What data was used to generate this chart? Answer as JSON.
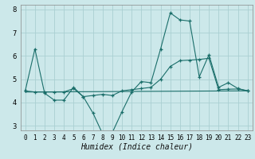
{
  "title": "",
  "xlabel": "Humidex (Indice chaleur)",
  "xlim": [
    -0.5,
    23.5
  ],
  "ylim": [
    2.8,
    8.2
  ],
  "yticks": [
    3,
    4,
    5,
    6,
    7,
    8
  ],
  "xticks": [
    0,
    1,
    2,
    3,
    4,
    5,
    6,
    7,
    8,
    9,
    10,
    11,
    12,
    13,
    14,
    15,
    16,
    17,
    18,
    19,
    20,
    21,
    22,
    23
  ],
  "bg_color": "#cce8ea",
  "grid_color": "#aacfd2",
  "line_color": "#1a6e6a",
  "line1_x": [
    0,
    1,
    2,
    3,
    4,
    5,
    6,
    7,
    8,
    9,
    10,
    11,
    12,
    13,
    14,
    15,
    16,
    17,
    18,
    19,
    20,
    21,
    22,
    23
  ],
  "line1_y": [
    4.5,
    6.3,
    4.4,
    4.1,
    4.1,
    4.65,
    4.25,
    3.55,
    2.65,
    2.7,
    3.6,
    4.45,
    4.9,
    4.85,
    6.3,
    7.85,
    7.55,
    7.5,
    5.1,
    6.05,
    4.65,
    4.85,
    4.6,
    4.5
  ],
  "line2_x": [
    0,
    1,
    2,
    3,
    4,
    5,
    6,
    7,
    8,
    9,
    10,
    11,
    12,
    13,
    14,
    15,
    16,
    17,
    18,
    19,
    20,
    21,
    22,
    23
  ],
  "line2_y": [
    4.5,
    4.45,
    4.45,
    4.45,
    4.45,
    4.6,
    4.25,
    4.3,
    4.35,
    4.3,
    4.5,
    4.55,
    4.6,
    4.65,
    5.0,
    5.55,
    5.8,
    5.82,
    5.85,
    5.9,
    4.55,
    4.57,
    4.58,
    4.5
  ],
  "line3_x": [
    0,
    23
  ],
  "line3_y": [
    4.45,
    4.5
  ],
  "xlabel_fontsize": 7,
  "tick_fontsize": 5.5
}
